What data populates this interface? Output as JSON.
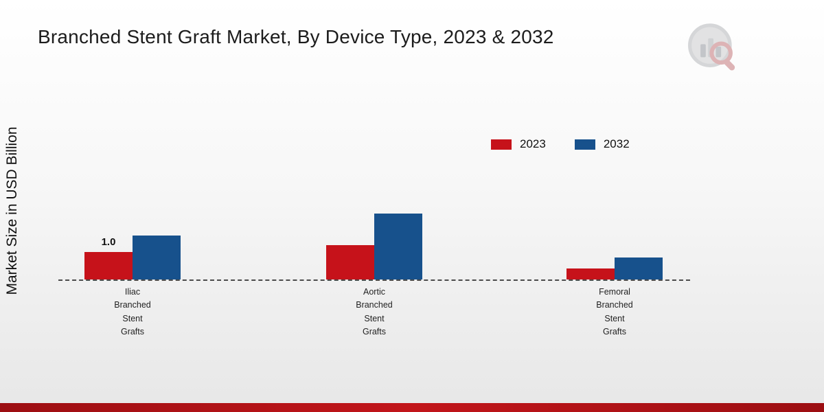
{
  "title": "Branched Stent Graft Market, By Device Type, 2023 & 2032",
  "ylabel": "Market Size in USD Billion",
  "colors": {
    "series_2023": "#c6121a",
    "series_2032": "#17518c",
    "bottom_bar": "#b01116"
  },
  "chart_data": {
    "type": "bar",
    "title": "Branched Stent Graft Market, By Device Type, 2023 & 2032",
    "xlabel": "",
    "ylabel": "Market Size in USD Billion",
    "categories": [
      "Iliac Branched Stent Grafts",
      "Aortic Branched Stent Grafts",
      "Femoral Branched Stent Grafts"
    ],
    "series": [
      {
        "name": "2023",
        "color": "#c6121a",
        "values": [
          1.0,
          1.25,
          0.4
        ],
        "value_labels": [
          "1.0",
          "",
          ""
        ]
      },
      {
        "name": "2032",
        "color": "#17518c",
        "values": [
          1.6,
          2.4,
          0.8
        ],
        "value_labels": [
          "",
          "",
          ""
        ]
      }
    ],
    "ylim": [
      0,
      3
    ],
    "grid": false,
    "legend_position": "upper-right",
    "baseline_style": "dashed"
  }
}
